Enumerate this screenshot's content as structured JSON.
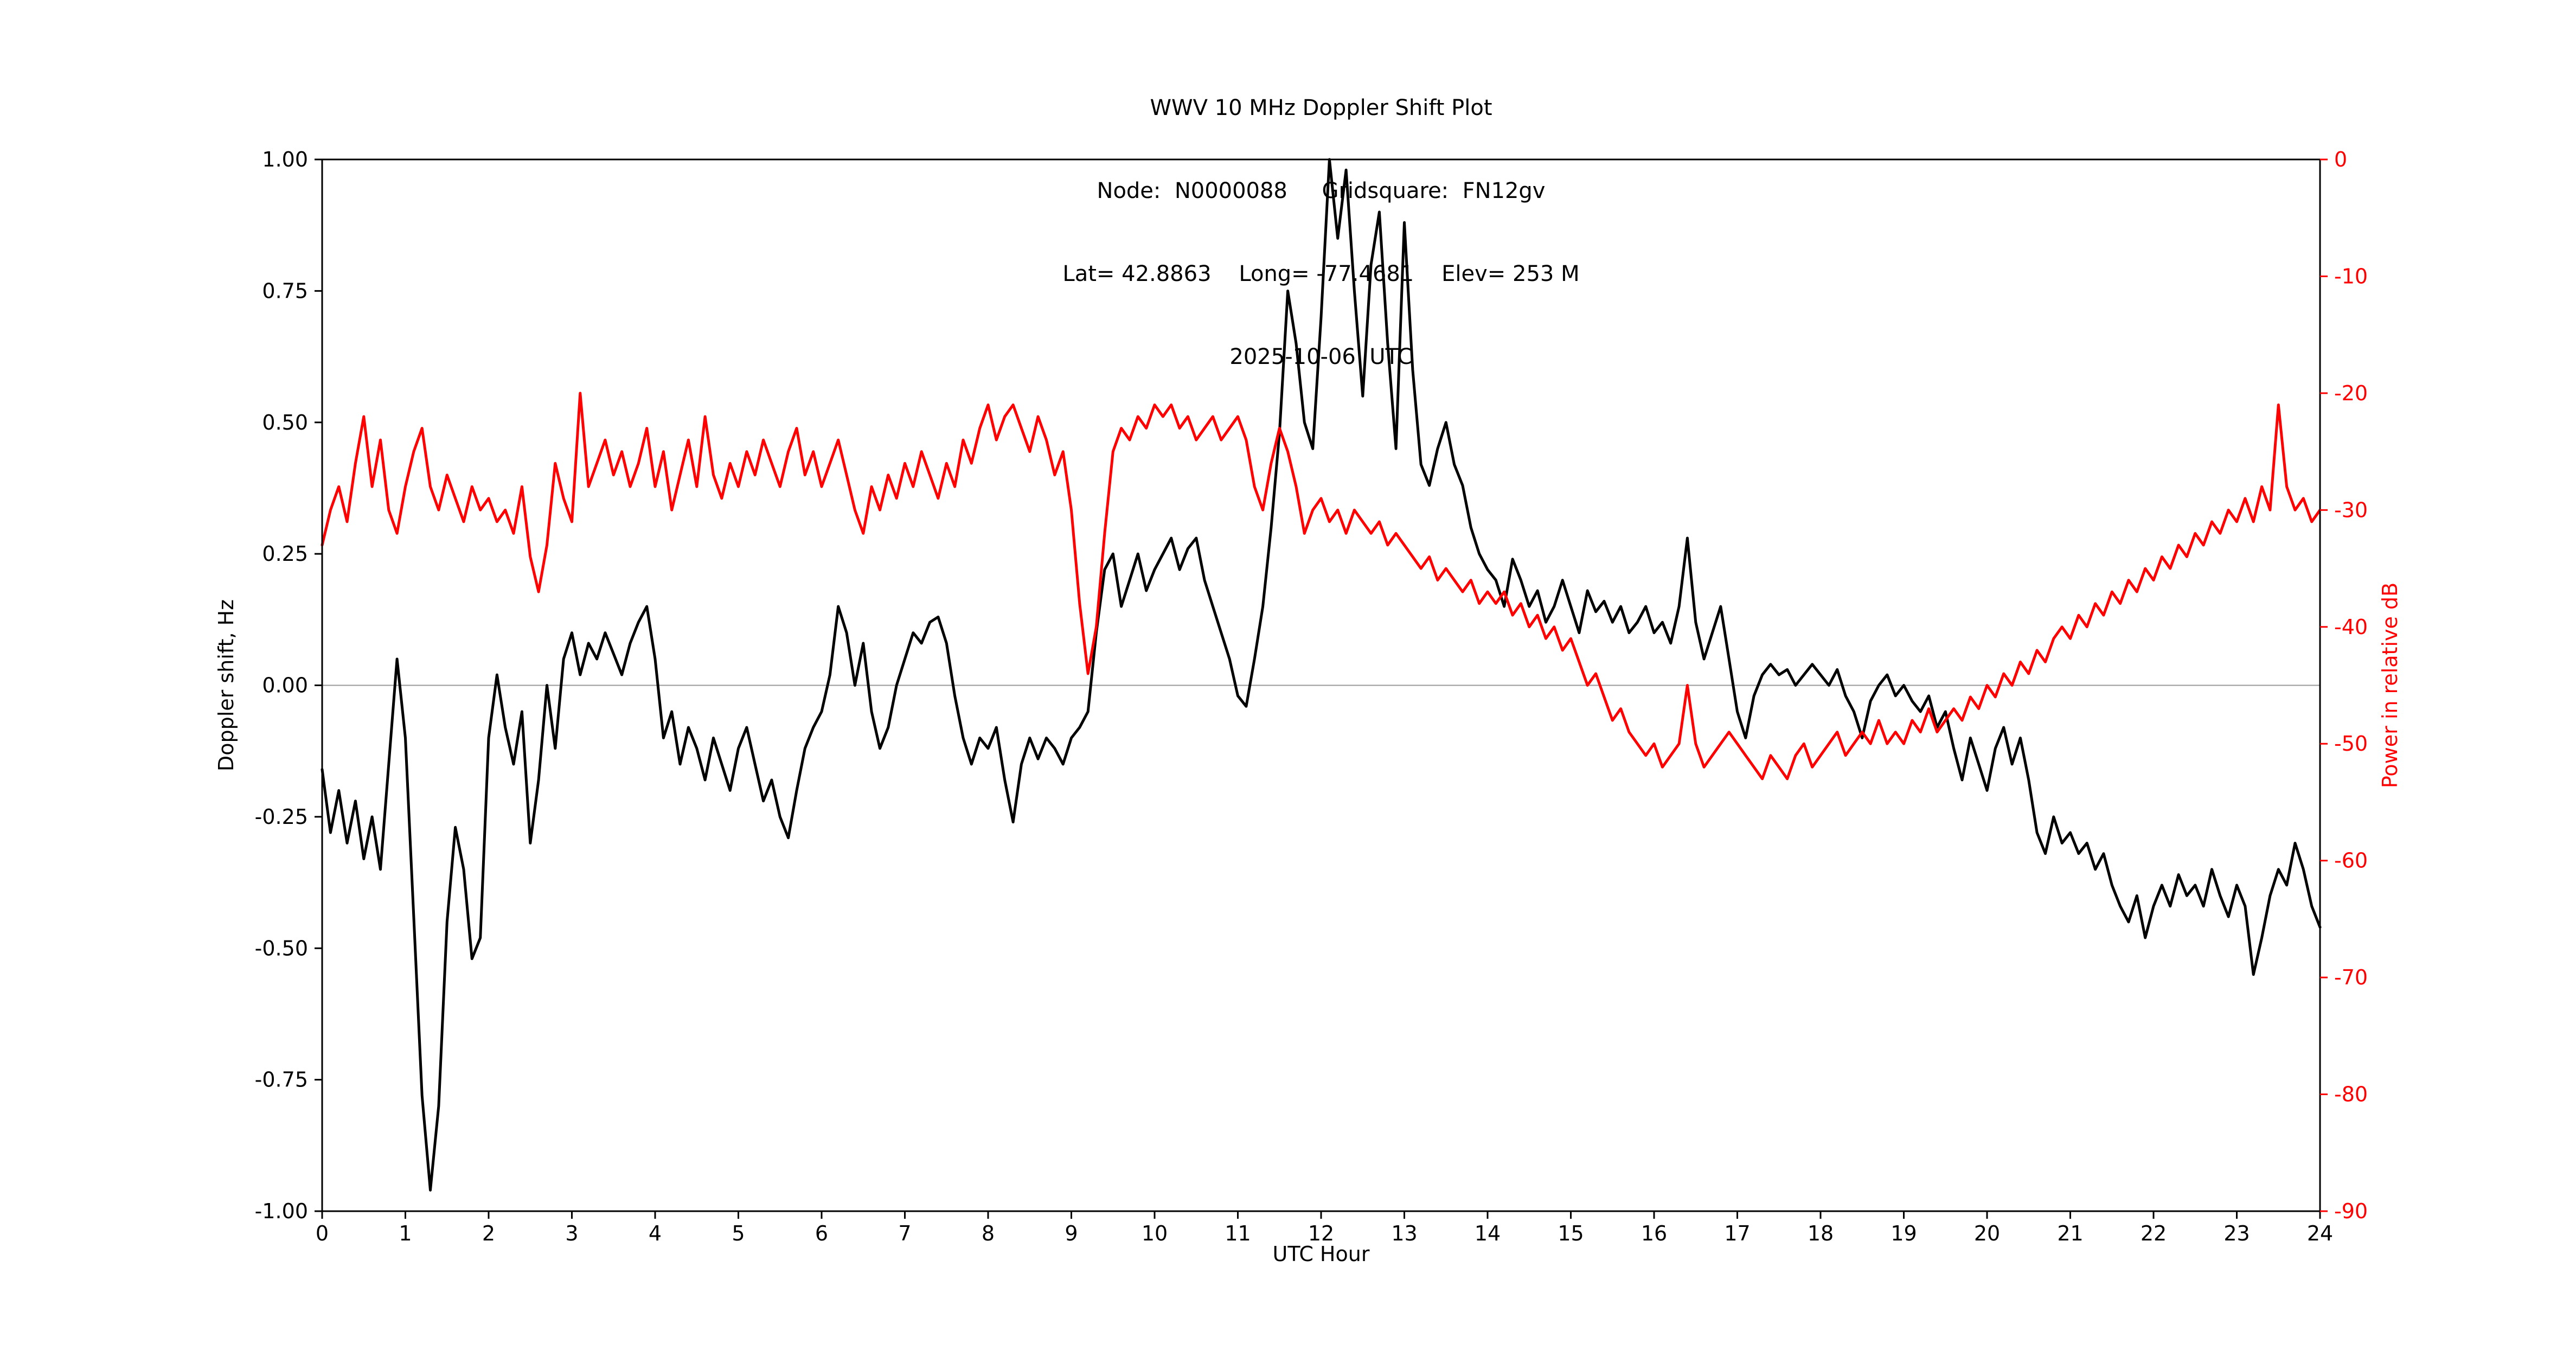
{
  "header": {
    "line1": "WWV 10 MHz Doppler Shift Plot",
    "line2": "Node:  N0000088     Gridsquare:  FN12gv",
    "line3": "Lat= 42.8863    Long= -77.4681    Elev= 253 M",
    "line4": "2025-10-06  UTC"
  },
  "chart_data": {
    "type": "line",
    "title": "WWV 10 MHz Doppler Shift Plot",
    "subtitle_lines": [
      "Node:  N0000088     Gridsquare:  FN12gv",
      "Lat= 42.8863    Long= -77.4681    Elev= 253 M",
      "2025-10-06  UTC"
    ],
    "xlabel": "UTC Hour",
    "ylabel_left": "Doppler shift, Hz",
    "ylabel_right": "Power in relative dB",
    "xlim": [
      0,
      24
    ],
    "ylim_left": [
      -1.0,
      1.0
    ],
    "ylim_right": [
      -90,
      0
    ],
    "grid": false,
    "zero_line_left": 0.0,
    "colors": {
      "doppler": "#000000",
      "power": "#ff0000",
      "zero_line": "#999999",
      "spine": "#000000"
    },
    "x_ticks": [
      0,
      1,
      2,
      3,
      4,
      5,
      6,
      7,
      8,
      9,
      10,
      11,
      12,
      13,
      14,
      15,
      16,
      17,
      18,
      19,
      20,
      21,
      22,
      23,
      24
    ],
    "x_tick_labels": [
      "0",
      "1",
      "2",
      "3",
      "4",
      "5",
      "6",
      "7",
      "8",
      "9",
      "10",
      "11",
      "12",
      "13",
      "14",
      "15",
      "16",
      "17",
      "18",
      "19",
      "20",
      "21",
      "22",
      "23",
      "24"
    ],
    "y_ticks_left": [
      -1.0,
      -0.75,
      -0.5,
      -0.25,
      0.0,
      0.25,
      0.5,
      0.75,
      1.0
    ],
    "y_tick_labels_left": [
      "-1.00",
      "-0.75",
      "-0.50",
      "-0.25",
      "0.00",
      "0.25",
      "0.50",
      "0.75",
      "1.00"
    ],
    "y_ticks_right": [
      0,
      -10,
      -20,
      -30,
      -40,
      -50,
      -60,
      -70,
      -80,
      -90
    ],
    "y_tick_labels_right": [
      "0",
      "-10",
      "-20",
      "-30",
      "-40",
      "-50",
      "-60",
      "-70",
      "-80",
      "-90"
    ],
    "x_start": 0,
    "x_step": 0.1,
    "series": [
      {
        "name": "Doppler shift (Hz)",
        "axis": "left",
        "color": "#000000",
        "values": [
          -0.16,
          -0.28,
          -0.2,
          -0.3,
          -0.22,
          -0.33,
          -0.25,
          -0.35,
          -0.15,
          0.05,
          -0.1,
          -0.44,
          -0.78,
          -0.96,
          -0.8,
          -0.45,
          -0.27,
          -0.35,
          -0.52,
          -0.48,
          -0.1,
          0.02,
          -0.08,
          -0.15,
          -0.05,
          -0.3,
          -0.18,
          0.0,
          -0.12,
          0.05,
          0.1,
          0.02,
          0.08,
          0.05,
          0.1,
          0.06,
          0.02,
          0.08,
          0.12,
          0.15,
          0.05,
          -0.1,
          -0.05,
          -0.15,
          -0.08,
          -0.12,
          -0.18,
          -0.1,
          -0.15,
          -0.2,
          -0.12,
          -0.08,
          -0.15,
          -0.22,
          -0.18,
          -0.25,
          -0.29,
          -0.2,
          -0.12,
          -0.08,
          -0.05,
          0.02,
          0.15,
          0.1,
          0.0,
          0.08,
          -0.05,
          -0.12,
          -0.08,
          0.0,
          0.05,
          0.1,
          0.08,
          0.12,
          0.13,
          0.08,
          -0.02,
          -0.1,
          -0.15,
          -0.1,
          -0.12,
          -0.08,
          -0.18,
          -0.26,
          -0.15,
          -0.1,
          -0.14,
          -0.1,
          -0.12,
          -0.15,
          -0.1,
          -0.08,
          -0.05,
          0.1,
          0.22,
          0.25,
          0.15,
          0.2,
          0.25,
          0.18,
          0.22,
          0.25,
          0.28,
          0.22,
          0.26,
          0.28,
          0.2,
          0.15,
          0.1,
          0.05,
          -0.02,
          -0.04,
          0.05,
          0.15,
          0.3,
          0.48,
          0.75,
          0.65,
          0.5,
          0.45,
          0.7,
          1.0,
          0.85,
          0.98,
          0.75,
          0.55,
          0.8,
          0.9,
          0.65,
          0.45,
          0.88,
          0.6,
          0.42,
          0.38,
          0.45,
          0.5,
          0.42,
          0.38,
          0.3,
          0.25,
          0.22,
          0.2,
          0.15,
          0.24,
          0.2,
          0.15,
          0.18,
          0.12,
          0.15,
          0.2,
          0.15,
          0.1,
          0.18,
          0.14,
          0.16,
          0.12,
          0.15,
          0.1,
          0.12,
          0.15,
          0.1,
          0.12,
          0.08,
          0.15,
          0.28,
          0.12,
          0.05,
          0.1,
          0.15,
          0.05,
          -0.05,
          -0.1,
          -0.02,
          0.02,
          0.04,
          0.02,
          0.03,
          0.0,
          0.02,
          0.04,
          0.02,
          0.0,
          0.03,
          -0.02,
          -0.05,
          -0.1,
          -0.03,
          0.0,
          0.02,
          -0.02,
          0.0,
          -0.03,
          -0.05,
          -0.02,
          -0.08,
          -0.05,
          -0.12,
          -0.18,
          -0.1,
          -0.15,
          -0.2,
          -0.12,
          -0.08,
          -0.15,
          -0.1,
          -0.18,
          -0.28,
          -0.32,
          -0.25,
          -0.3,
          -0.28,
          -0.32,
          -0.3,
          -0.35,
          -0.32,
          -0.38,
          -0.42,
          -0.45,
          -0.4,
          -0.48,
          -0.42,
          -0.38,
          -0.42,
          -0.36,
          -0.4,
          -0.38,
          -0.42,
          -0.35,
          -0.4,
          -0.44,
          -0.38,
          -0.42,
          -0.55,
          -0.48,
          -0.4,
          -0.35,
          -0.38,
          -0.3,
          -0.35,
          -0.42,
          -0.46
        ]
      },
      {
        "name": "Power (relative dB)",
        "axis": "right",
        "color": "#ff0000",
        "values": [
          -33,
          -30,
          -28,
          -31,
          -26,
          -22,
          -28,
          -24,
          -30,
          -32,
          -28,
          -25,
          -23,
          -28,
          -30,
          -27,
          -29,
          -31,
          -28,
          -30,
          -29,
          -31,
          -30,
          -32,
          -28,
          -34,
          -37,
          -33,
          -26,
          -29,
          -31,
          -20,
          -28,
          -26,
          -24,
          -27,
          -25,
          -28,
          -26,
          -23,
          -28,
          -25,
          -30,
          -27,
          -24,
          -28,
          -22,
          -27,
          -29,
          -26,
          -28,
          -25,
          -27,
          -24,
          -26,
          -28,
          -25,
          -23,
          -27,
          -25,
          -28,
          -26,
          -24,
          -27,
          -30,
          -32,
          -28,
          -30,
          -27,
          -29,
          -26,
          -28,
          -25,
          -27,
          -29,
          -26,
          -28,
          -24,
          -26,
          -23,
          -21,
          -24,
          -22,
          -21,
          -23,
          -25,
          -22,
          -24,
          -27,
          -25,
          -30,
          -38,
          -44,
          -40,
          -32,
          -25,
          -23,
          -24,
          -22,
          -23,
          -21,
          -22,
          -21,
          -23,
          -22,
          -24,
          -23,
          -22,
          -24,
          -23,
          -22,
          -24,
          -28,
          -30,
          -26,
          -23,
          -25,
          -28,
          -32,
          -30,
          -29,
          -31,
          -30,
          -32,
          -30,
          -31,
          -32,
          -31,
          -33,
          -32,
          -33,
          -34,
          -35,
          -34,
          -36,
          -35,
          -36,
          -37,
          -36,
          -38,
          -37,
          -38,
          -37,
          -39,
          -38,
          -40,
          -39,
          -41,
          -40,
          -42,
          -41,
          -43,
          -45,
          -44,
          -46,
          -48,
          -47,
          -49,
          -50,
          -51,
          -50,
          -52,
          -51,
          -50,
          -45,
          -50,
          -52,
          -51,
          -50,
          -49,
          -50,
          -51,
          -52,
          -53,
          -51,
          -52,
          -53,
          -51,
          -50,
          -52,
          -51,
          -50,
          -49,
          -51,
          -50,
          -49,
          -50,
          -48,
          -50,
          -49,
          -50,
          -48,
          -49,
          -47,
          -49,
          -48,
          -47,
          -48,
          -46,
          -47,
          -45,
          -46,
          -44,
          -45,
          -43,
          -44,
          -42,
          -43,
          -41,
          -40,
          -41,
          -39,
          -40,
          -38,
          -39,
          -37,
          -38,
          -36,
          -37,
          -35,
          -36,
          -34,
          -35,
          -33,
          -34,
          -32,
          -33,
          -31,
          -32,
          -30,
          -31,
          -29,
          -31,
          -28,
          -30,
          -21,
          -28,
          -30,
          -29,
          -31,
          -30
        ]
      }
    ]
  }
}
